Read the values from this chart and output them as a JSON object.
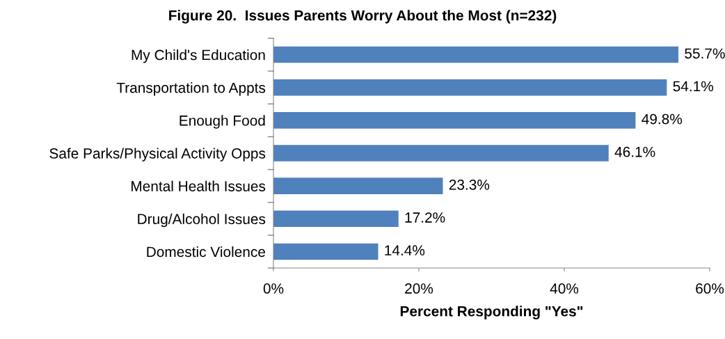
{
  "chart_data": {
    "type": "bar",
    "orientation": "horizontal",
    "title": "Figure 20.  Issues Parents Worry About the Most (n=232)",
    "xlabel": "Percent Responding \"Yes\"",
    "categories": [
      "My Child's Education",
      "Transportation to Appts",
      "Enough Food",
      "Safe Parks/Physical Activity Opps",
      "Mental Health Issues",
      "Drug/Alcohol Issues",
      "Domestic Violence"
    ],
    "values": [
      55.7,
      54.1,
      49.8,
      46.1,
      23.3,
      17.2,
      14.4
    ],
    "value_labels": [
      "55.7%",
      "54.1%",
      "49.8%",
      "46.1%",
      "23.3%",
      "17.2%",
      "14.4%"
    ],
    "color": "#4f81bd",
    "xlim": [
      0,
      60
    ],
    "xticks": [
      {
        "value": 0,
        "label": "0%"
      },
      {
        "value": 20,
        "label": "20%"
      },
      {
        "value": 40,
        "label": "40%"
      },
      {
        "value": 60,
        "label": "60%"
      }
    ],
    "grid": false,
    "legend": false
  }
}
